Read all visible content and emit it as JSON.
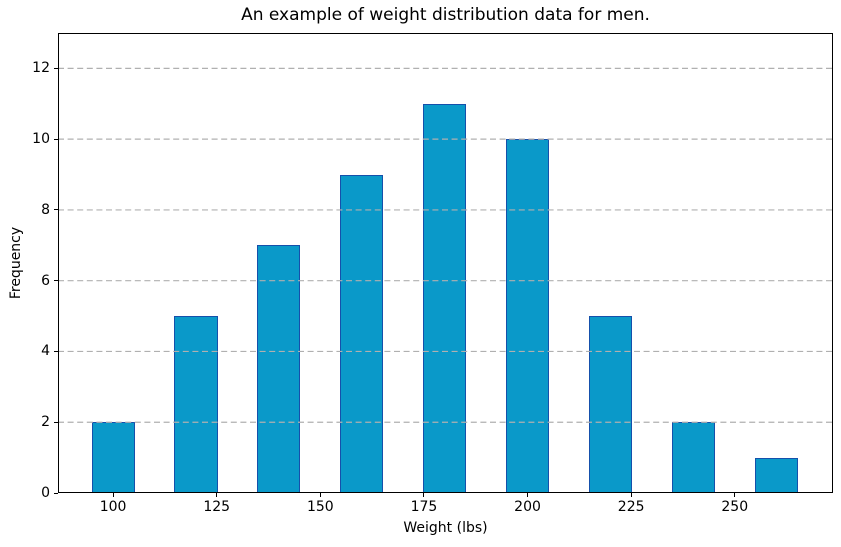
{
  "window": {
    "background": "#ffffff"
  },
  "chart_data": {
    "type": "bar",
    "title": "An example of weight distribution data for men.",
    "xlabel": "Weight (lbs)",
    "ylabel": "Frequency",
    "bar_centers": [
      100,
      120,
      140,
      160,
      180,
      200,
      220,
      240,
      260
    ],
    "values": [
      2,
      5,
      7,
      9,
      11,
      10,
      5,
      2,
      1
    ],
    "bar_width": 10.4,
    "xlim": [
      86.7,
      273.7
    ],
    "ylim": [
      0,
      13
    ],
    "xticks": [
      100,
      125,
      150,
      175,
      200,
      225,
      250
    ],
    "yticks": [
      0,
      2,
      4,
      6,
      8,
      10,
      12
    ],
    "grid": {
      "axis": "y",
      "style": "dashed",
      "on": true
    },
    "legend": "none",
    "colors": {
      "bar_fill": "#0a99c9",
      "bar_edge": "#1550ab",
      "grid": "#b0b0b0",
      "spine": "#000000",
      "text": "#000000"
    }
  }
}
